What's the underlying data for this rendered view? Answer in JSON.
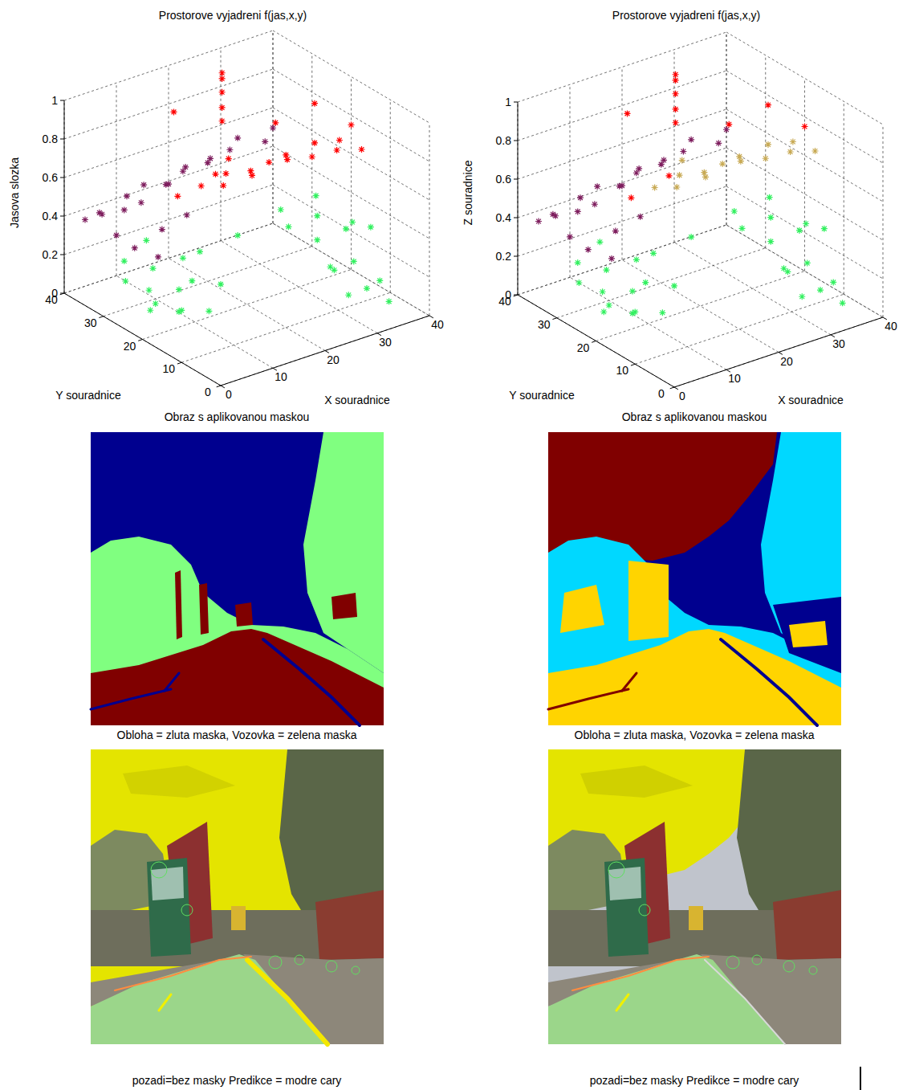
{
  "chart_data": [
    {
      "type": "scatter3d",
      "title": "Prostorove vyjadreni f(jas,x,y)",
      "x_label": "X souradnice",
      "y_label": "Y souradnice",
      "z_label": "Jasova slozka",
      "xlim": [
        0,
        40
      ],
      "ylim": [
        0,
        40
      ],
      "zlim": [
        0,
        1
      ],
      "xticks": [
        0,
        10,
        20,
        30,
        40
      ],
      "yticks": [
        0,
        10,
        20,
        30,
        40
      ],
      "zticks": [
        0,
        0.2,
        0.4,
        0.6,
        0.8,
        1
      ],
      "grid": true,
      "marker": "asterisk",
      "series": [
        {
          "color": "#7e1e5e",
          "x": [
            1,
            3,
            5,
            7,
            9,
            11,
            13,
            15,
            17,
            19,
            21,
            23,
            25,
            28,
            31,
            34,
            37,
            6,
            9,
            12,
            4,
            16
          ],
          "y": [
            36,
            35,
            37,
            34,
            36,
            35,
            37,
            34,
            36,
            35,
            37,
            34,
            36,
            35,
            37,
            34,
            36,
            30,
            28,
            31,
            32,
            30
          ],
          "z": [
            0.42,
            0.45,
            0.4,
            0.44,
            0.47,
            0.43,
            0.48,
            0.5,
            0.46,
            0.52,
            0.5,
            0.54,
            0.52,
            0.55,
            0.56,
            0.55,
            0.57,
            0.3,
            0.25,
            0.33,
            0.36,
            0.38
          ]
        },
        {
          "color": "#ff0000",
          "x": [
            15,
            17,
            19,
            21,
            23,
            25,
            27,
            29,
            31,
            33,
            35,
            37,
            39,
            20,
            24,
            25,
            25,
            25,
            25,
            25,
            12,
            30,
            36,
            40,
            15
          ],
          "y": [
            25,
            22,
            24,
            20,
            23,
            21,
            19,
            22,
            18,
            20,
            17,
            19,
            16,
            28,
            30,
            33,
            33,
            33,
            33,
            33,
            27,
            26,
            24,
            20,
            32
          ],
          "z": [
            0.6,
            0.62,
            0.64,
            0.66,
            0.63,
            0.68,
            0.7,
            0.67,
            0.69,
            0.72,
            0.7,
            0.71,
            0.68,
            0.58,
            0.6,
            0.75,
            0.82,
            0.9,
            0.97,
            1,
            0.55,
            0.78,
            0.85,
            0.75,
            0.9
          ]
        },
        {
          "color": "#33f060",
          "x": [
            3,
            5,
            7,
            8,
            10,
            12,
            13,
            4,
            6,
            9,
            11,
            14,
            2,
            15,
            7,
            30,
            32,
            34,
            35,
            36,
            37,
            38,
            39,
            31,
            33,
            40,
            36,
            34,
            38,
            32,
            22
          ],
          "y": [
            22,
            25,
            20,
            28,
            24,
            19,
            27,
            30,
            18,
            31,
            22,
            24,
            27,
            20,
            26,
            12,
            18,
            8,
            22,
            14,
            25,
            10,
            20,
            26,
            15,
            15,
            5,
            28,
            17,
            10,
            25
          ],
          "z": [
            0.1,
            0.15,
            0.08,
            0.2,
            0.12,
            0.05,
            0.22,
            0.25,
            0.12,
            0.3,
            0.18,
            0.28,
            0.2,
            0.15,
            0.05,
            0.2,
            0.25,
            0.1,
            0.3,
            0.15,
            0.35,
            0.08,
            0.22,
            0.32,
            0.12,
            0.28,
            0.05,
            0.18,
            0.3,
            0.06,
            0.28
          ]
        }
      ]
    },
    {
      "type": "scatter3d",
      "title": "Prostorove vyjadreni f(jas,x,y)",
      "x_label": "X souradnice",
      "y_label": "Y souradnice",
      "z_label": "Z souradnice",
      "xlim": [
        0,
        40
      ],
      "ylim": [
        0,
        40
      ],
      "zlim": [
        0,
        1
      ],
      "xticks": [
        0,
        10,
        20,
        30,
        40
      ],
      "yticks": [
        0,
        10,
        20,
        30,
        40
      ],
      "zticks": [
        0,
        0.2,
        0.4,
        0.6,
        0.8,
        1
      ],
      "grid": true,
      "marker": "asterisk",
      "series": [
        {
          "color": "#7e1e5e",
          "x": [
            1,
            3,
            5,
            7,
            9,
            11,
            13,
            15,
            17,
            19,
            21,
            23,
            25,
            28,
            31,
            34,
            37,
            6,
            9,
            12,
            4,
            16
          ],
          "y": [
            36,
            35,
            37,
            34,
            36,
            35,
            37,
            34,
            36,
            35,
            37,
            34,
            36,
            35,
            37,
            34,
            36,
            30,
            28,
            31,
            32,
            30
          ],
          "z": [
            0.42,
            0.45,
            0.4,
            0.44,
            0.47,
            0.43,
            0.48,
            0.5,
            0.46,
            0.52,
            0.5,
            0.54,
            0.52,
            0.55,
            0.56,
            0.55,
            0.57,
            0.3,
            0.25,
            0.33,
            0.36,
            0.38
          ]
        },
        {
          "color": "#ff0000",
          "x": [
            25,
            25,
            25,
            25,
            25,
            15,
            36,
            40,
            20,
            12,
            30
          ],
          "y": [
            33,
            33,
            33,
            33,
            33,
            32,
            24,
            20,
            28,
            27,
            26
          ],
          "z": [
            0.75,
            0.82,
            0.9,
            0.97,
            1,
            0.9,
            0.85,
            0.75,
            0.58,
            0.55,
            0.78
          ]
        },
        {
          "color": "#c8aa55",
          "x": [
            15,
            17,
            19,
            21,
            23,
            25,
            27,
            29,
            31,
            33,
            35,
            37,
            39,
            24
          ],
          "y": [
            25,
            22,
            24,
            20,
            23,
            21,
            19,
            22,
            18,
            20,
            17,
            19,
            16,
            30
          ],
          "z": [
            0.6,
            0.62,
            0.64,
            0.66,
            0.63,
            0.68,
            0.7,
            0.67,
            0.69,
            0.72,
            0.7,
            0.71,
            0.68,
            0.6
          ]
        },
        {
          "color": "#33f060",
          "x": [
            3,
            5,
            7,
            8,
            10,
            12,
            13,
            4,
            6,
            9,
            11,
            14,
            2,
            15,
            7,
            30,
            32,
            34,
            35,
            36,
            37,
            38,
            39,
            31,
            33,
            40,
            36,
            34,
            38,
            32,
            22
          ],
          "y": [
            22,
            25,
            20,
            28,
            24,
            19,
            27,
            30,
            18,
            31,
            22,
            24,
            27,
            20,
            26,
            12,
            18,
            8,
            22,
            14,
            25,
            10,
            20,
            26,
            15,
            15,
            5,
            28,
            17,
            10,
            25
          ],
          "z": [
            0.1,
            0.15,
            0.08,
            0.2,
            0.12,
            0.05,
            0.22,
            0.25,
            0.12,
            0.3,
            0.18,
            0.28,
            0.2,
            0.15,
            0.05,
            0.2,
            0.25,
            0.1,
            0.3,
            0.15,
            0.35,
            0.08,
            0.22,
            0.32,
            0.12,
            0.28,
            0.05,
            0.18,
            0.3,
            0.06,
            0.28
          ]
        }
      ]
    }
  ],
  "panels": [
    {
      "mask_title": "Obraz s aplikovanou maskou",
      "overlay_title": "Obloha = zluta maska, Vozovka = zelena maska",
      "overlay_xlabel": "pozadi=bez masky Predikce = modre cary"
    },
    {
      "mask_title": "Obraz s aplikovanou maskou",
      "overlay_title": "Obloha = zluta maska, Vozovka = zelena maska",
      "overlay_xlabel": "pozadi=bez masky Predikce = modre cary"
    }
  ]
}
